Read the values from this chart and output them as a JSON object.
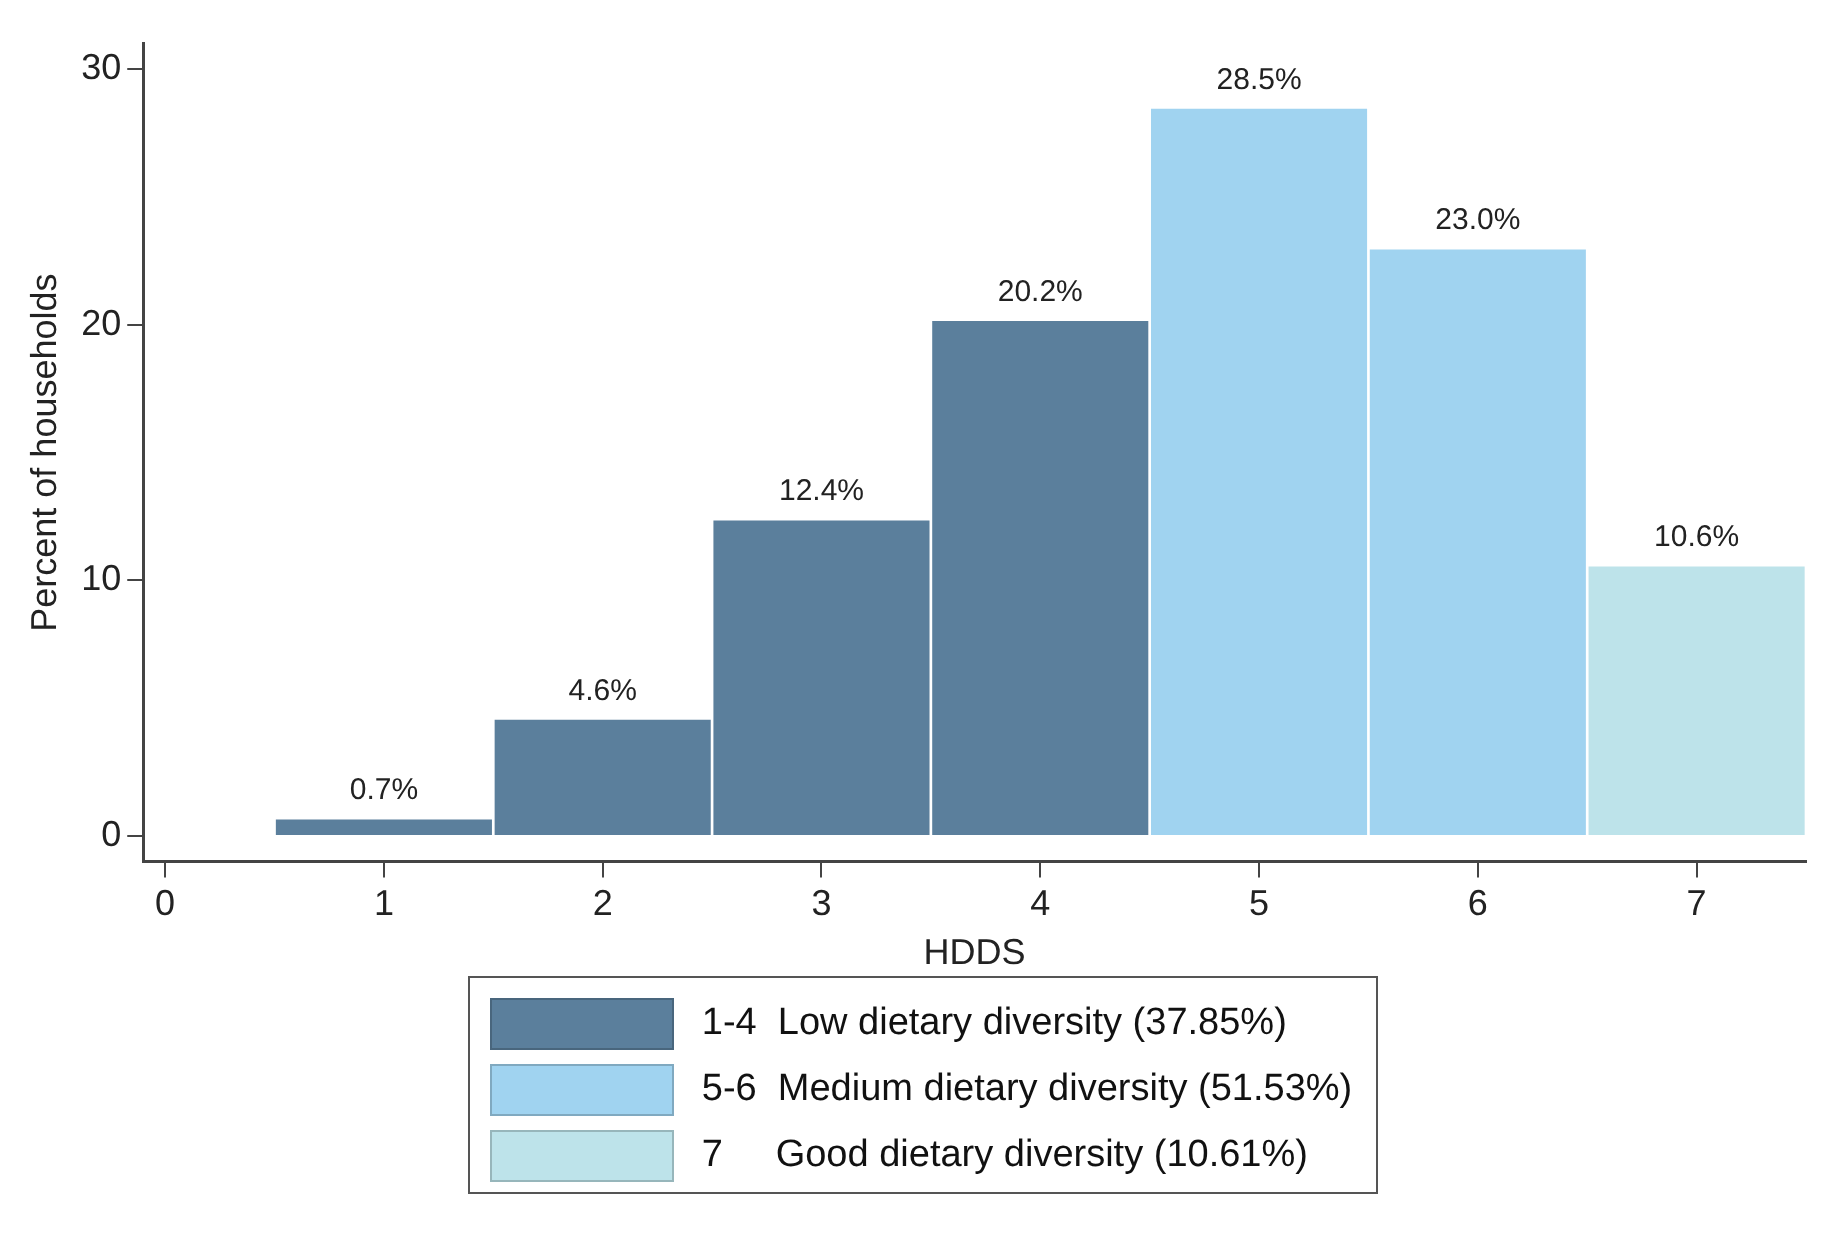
{
  "chart_data": {
    "type": "bar",
    "xlabel": "HDDS",
    "ylabel": "Percent of households",
    "x": [
      1,
      2,
      3,
      4,
      5,
      6,
      7
    ],
    "series": [
      {
        "name": "1-4  Low dietary diversity (37.85%)",
        "color": "#5b7f9c",
        "values": [
          0.7,
          4.6,
          12.4,
          20.2,
          null,
          null,
          null
        ],
        "value_labels": [
          "0.7%",
          "4.6%",
          "12.4%",
          "20.2%",
          null,
          null,
          null
        ]
      },
      {
        "name": "5-6  Medium dietary diversity (51.53%)",
        "color": "#a0d3f0",
        "values": [
          null,
          null,
          null,
          null,
          28.5,
          23.0,
          null
        ],
        "value_labels": [
          null,
          null,
          null,
          null,
          "28.5%",
          "23.0%",
          null
        ]
      },
      {
        "name": "7     Good dietary diversity (10.61%)",
        "color": "#bde3ea",
        "values": [
          null,
          null,
          null,
          null,
          null,
          null,
          10.6
        ],
        "value_labels": [
          null,
          null,
          null,
          null,
          null,
          null,
          "10.6%"
        ]
      }
    ],
    "xlim": [
      -0.1,
      7.5
    ],
    "xticks": [
      0,
      1,
      2,
      3,
      4,
      5,
      6,
      7
    ],
    "ylim": [
      -1,
      31
    ],
    "yticks": [
      0,
      10,
      20,
      30
    ],
    "grid": false,
    "legend": "bottom"
  }
}
